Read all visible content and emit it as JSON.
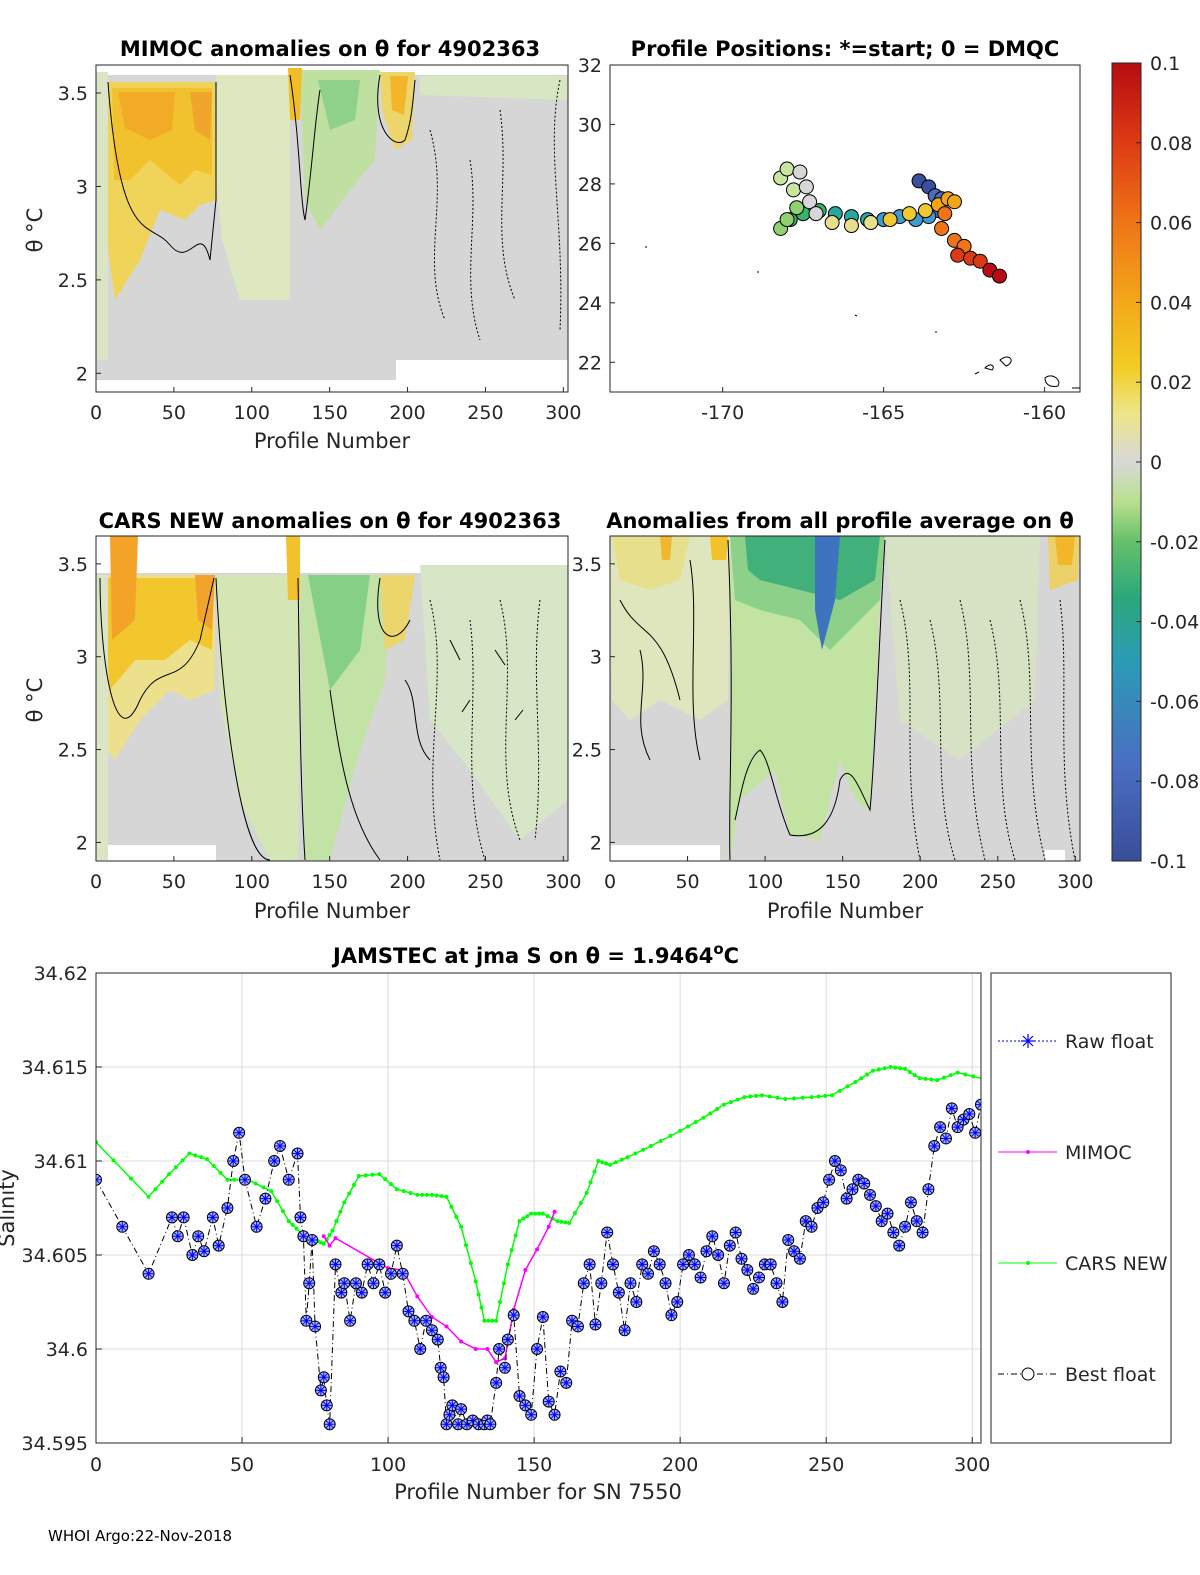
{
  "footer": "WHOI Argo:22-Nov-2018",
  "colorbar": {
    "ticks": [
      "0.1",
      "0.08",
      "0.06",
      "0.04",
      "0.02",
      "0",
      "-0.02",
      "-0.04",
      "-0.06",
      "-0.08",
      "-0.1"
    ],
    "colors": [
      "#3c4f9c",
      "#4a6cc0",
      "#3f9ad4",
      "#2aa6a0",
      "#3bb36e",
      "#8fd070",
      "#c8e6a0",
      "#d7d7d7",
      "#e8df8c",
      "#f0c830",
      "#f3a51a",
      "#ef7418",
      "#dc3a14",
      "#b80d12"
    ]
  },
  "panels": {
    "mimoc": {
      "title": "MIMOC anomalies on θ  for 4902363",
      "xlabel": "Profile Number",
      "ylabel": "θ °C",
      "xticks": [
        "0",
        "50",
        "100",
        "150",
        "200",
        "250",
        "300"
      ],
      "yticks": [
        "3.5",
        "3",
        "2.5",
        "2"
      ]
    },
    "map": {
      "title": "Profile Positions: *=start; 0 = DMQC",
      "xticks": [
        "-170",
        "-165",
        "-160"
      ],
      "yticks": [
        "32",
        "30",
        "28",
        "26",
        "24",
        "22"
      ]
    },
    "cars": {
      "title": "CARS NEW anomalies on θ for 4902363",
      "xlabel": "Profile Number",
      "ylabel": "θ °C",
      "xticks": [
        "0",
        "50",
        "100",
        "150",
        "200",
        "250",
        "300"
      ],
      "yticks": [
        "3.5",
        "3",
        "2.5",
        "2"
      ]
    },
    "avg": {
      "title": "Anomalies from all profile average on θ",
      "xlabel": "Profile Number",
      "xticks": [
        "0",
        "50",
        "100",
        "150",
        "200",
        "250",
        "300"
      ],
      "yticks": [
        "3.5",
        "3",
        "2.5",
        "2"
      ]
    }
  },
  "chart_data": {
    "type": "line",
    "title": "JAMSTEC at jma S on θ = 1.9464",
    "title_sup": "o",
    "title_unit": "C",
    "xlabel": "Profile Number for SN 7550",
    "ylabel": "Salinity",
    "xlim": [
      0,
      303
    ],
    "ylim": [
      34.595,
      34.62
    ],
    "xticks": [
      "0",
      "50",
      "100",
      "150",
      "200",
      "250",
      "300"
    ],
    "yticks": [
      "34.62",
      "34.615",
      "34.61",
      "34.605",
      "34.6",
      "34.595"
    ],
    "legend": [
      "Raw float",
      "MIMOC",
      "CARS NEW",
      "Best float"
    ],
    "colors": {
      "raw": "#0000ff",
      "mimoc": "#ff00ff",
      "cars": "#00ff00",
      "best": "#000000",
      "marker_fill": "#a8b8f0"
    },
    "series": [
      {
        "name": "CARS NEW",
        "x": [
          0,
          18,
          25,
          32,
          38,
          45,
          52,
          60,
          66,
          70,
          75,
          78,
          81,
          85,
          90,
          97,
          103,
          110,
          115,
          120,
          125,
          130,
          133,
          137,
          141,
          145,
          149,
          153,
          158,
          162,
          168,
          172,
          176,
          182,
          190,
          200,
          208,
          215,
          222,
          228,
          236,
          245,
          252,
          260,
          266,
          272,
          277,
          282,
          288,
          295,
          303
        ],
        "values": [
          34.611,
          34.6081,
          34.6093,
          34.6104,
          34.6101,
          34.609,
          34.609,
          34.6084,
          34.6068,
          34.6062,
          34.6058,
          34.6056,
          34.6063,
          34.6078,
          34.6092,
          34.6093,
          34.6085,
          34.6082,
          34.6082,
          34.6081,
          34.6065,
          34.6036,
          34.6015,
          34.6015,
          34.6045,
          34.6068,
          34.6072,
          34.6072,
          34.6068,
          34.6067,
          34.6083,
          34.61,
          34.6098,
          34.6102,
          34.6108,
          34.6116,
          34.6123,
          34.613,
          34.6134,
          34.6135,
          34.6133,
          34.6134,
          34.6135,
          34.6142,
          34.6148,
          34.615,
          34.6149,
          34.6144,
          34.6143,
          34.6147,
          34.6144
        ]
      },
      {
        "name": "MIMOC",
        "x": [
          78,
          80,
          82,
          100,
          105,
          110,
          115,
          120,
          125,
          130,
          134,
          137,
          140,
          143,
          147,
          151,
          155,
          157
        ],
        "values": [
          34.606,
          34.6055,
          34.6059,
          34.6043,
          34.6042,
          34.6028,
          34.6017,
          34.6012,
          34.6004,
          34.6,
          34.6,
          34.5993,
          34.5995,
          34.6021,
          34.6042,
          34.6053,
          34.6065,
          34.6073
        ]
      },
      {
        "name": "Best float",
        "x": [
          0,
          9,
          18,
          26,
          28,
          30,
          33,
          35,
          37,
          40,
          42,
          45,
          47,
          49,
          51,
          55,
          58,
          61,
          63,
          66,
          69,
          70,
          71,
          72,
          73,
          74,
          75,
          77,
          78,
          79,
          80,
          82,
          84,
          85,
          87,
          89,
          91,
          93,
          95,
          97,
          99,
          101,
          103,
          105,
          107,
          109,
          111,
          113,
          115,
          117,
          118,
          119,
          120,
          121,
          122,
          124,
          125,
          127,
          129,
          131,
          133,
          134,
          135,
          137,
          138,
          140,
          141,
          143,
          145,
          147,
          149,
          151,
          153,
          155,
          157,
          159,
          161,
          163,
          165,
          167,
          169,
          171,
          173,
          175,
          177,
          179,
          181,
          183,
          185,
          187,
          189,
          191,
          193,
          195,
          197,
          199,
          201,
          203,
          205,
          207,
          209,
          211,
          213,
          215,
          217,
          219,
          221,
          223,
          225,
          227,
          229,
          231,
          233,
          235,
          237,
          239,
          241,
          243,
          245,
          247,
          249,
          251,
          253,
          255,
          257,
          259,
          261,
          263,
          265,
          267,
          269,
          271,
          273,
          275,
          277,
          279,
          281,
          283,
          285,
          287,
          289,
          291,
          293,
          295,
          297,
          299,
          301,
          303
        ],
        "values": [
          34.609,
          34.6065,
          34.604,
          34.607,
          34.606,
          34.607,
          34.605,
          34.606,
          34.6052,
          34.607,
          34.6055,
          34.6075,
          34.61,
          34.6115,
          34.609,
          34.6065,
          34.608,
          34.61,
          34.6108,
          34.609,
          34.6104,
          34.607,
          34.606,
          34.6015,
          34.6035,
          34.6058,
          34.6012,
          34.5978,
          34.5985,
          34.597,
          34.596,
          34.6045,
          34.603,
          34.6035,
          34.6015,
          34.6035,
          34.603,
          34.6045,
          34.6035,
          34.6045,
          34.603,
          34.604,
          34.6055,
          34.604,
          34.602,
          34.6015,
          34.6,
          34.6015,
          34.601,
          34.6005,
          34.599,
          34.5985,
          34.596,
          34.5965,
          34.597,
          34.596,
          34.5968,
          34.596,
          34.5962,
          34.596,
          34.596,
          34.5962,
          34.596,
          34.5982,
          34.6,
          34.599,
          34.6005,
          34.6018,
          34.5975,
          34.597,
          34.5965,
          34.6,
          34.6017,
          34.5972,
          34.5965,
          34.5988,
          34.5982,
          34.6015,
          34.6012,
          34.6035,
          34.6045,
          34.6013,
          34.6035,
          34.6062,
          34.6045,
          34.603,
          34.601,
          34.6035,
          34.6025,
          34.6045,
          34.604,
          34.6052,
          34.6045,
          34.6035,
          34.6018,
          34.6025,
          34.6045,
          34.605,
          34.6045,
          34.6038,
          34.6052,
          34.606,
          34.605,
          34.6035,
          34.6055,
          34.6062,
          34.6048,
          34.6042,
          34.6032,
          34.6038,
          34.6045,
          34.6045,
          34.6035,
          34.6025,
          34.6058,
          34.6052,
          34.6048,
          34.6068,
          34.6065,
          34.6075,
          34.6078,
          34.609,
          34.61,
          34.6095,
          34.608,
          34.6085,
          34.609,
          34.6088,
          34.6082,
          34.6076,
          34.6068,
          34.6072,
          34.6062,
          34.6055,
          34.6065,
          34.6078,
          34.6068,
          34.6062,
          34.6085,
          34.6108,
          34.6118,
          34.6112,
          34.6128,
          34.6118,
          34.6122,
          34.6125,
          34.6115,
          34.613
        ]
      }
    ]
  }
}
